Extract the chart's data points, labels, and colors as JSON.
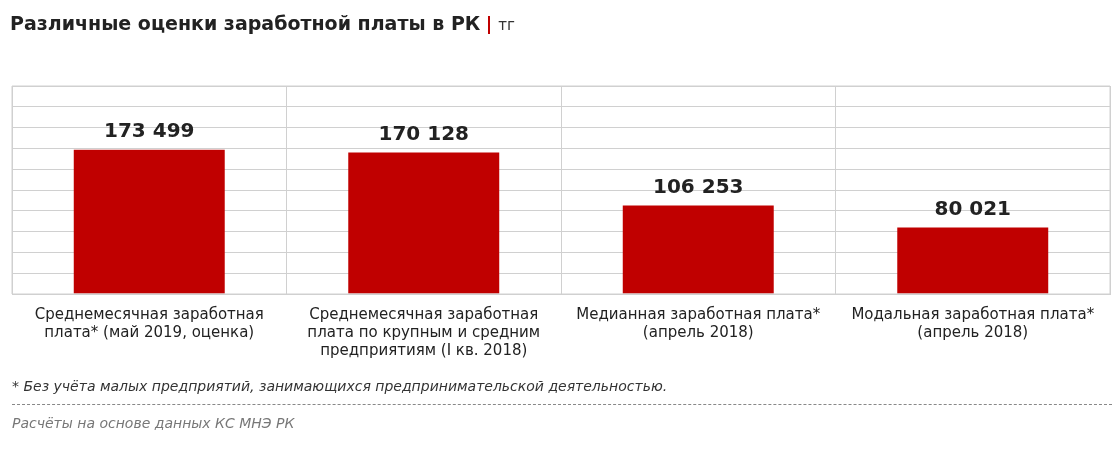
{
  "chart_data": {
    "type": "bar",
    "title": "Различные оценки заработной платы в РК",
    "subtitle": "тг",
    "categories": [
      "Среднемесячная заработная плата* (май 2019, оценка)",
      "Среднемесячная заработная плата по крупным и средним предприятиям (I кв. 2018)",
      "Медианная заработная плата* (апрель 2018)",
      "Модальная заработная плата* (апрель 2018)"
    ],
    "values": [
      173499,
      170128,
      106253,
      80021
    ],
    "value_labels": [
      "173 499",
      "170 128",
      "106 253",
      "80 021"
    ],
    "color": "#c00000",
    "ylim": [
      0,
      250000
    ],
    "yticks": [
      {
        "value": 0,
        "label": null
      },
      {
        "value": 25000,
        "label": null
      },
      {
        "value": 50000,
        "label": null
      },
      {
        "value": 75000,
        "label": null
      },
      {
        "value": 100000,
        "label": null
      },
      {
        "value": 125000,
        "label": null
      },
      {
        "value": 150000,
        "label": null
      },
      {
        "value": 175000,
        "label": null
      },
      {
        "value": 200000,
        "label": null
      },
      {
        "value": 225000,
        "label": null
      },
      {
        "value": 250000,
        "label": null
      }
    ],
    "grid": true,
    "legend": false,
    "tick_labels": "x",
    "annotations": [
      "* Без учёта малых предприятий, занимающихся предпринимательской деятельностью.",
      "Расчёты на основе данных КС МНЭ РК"
    ]
  }
}
